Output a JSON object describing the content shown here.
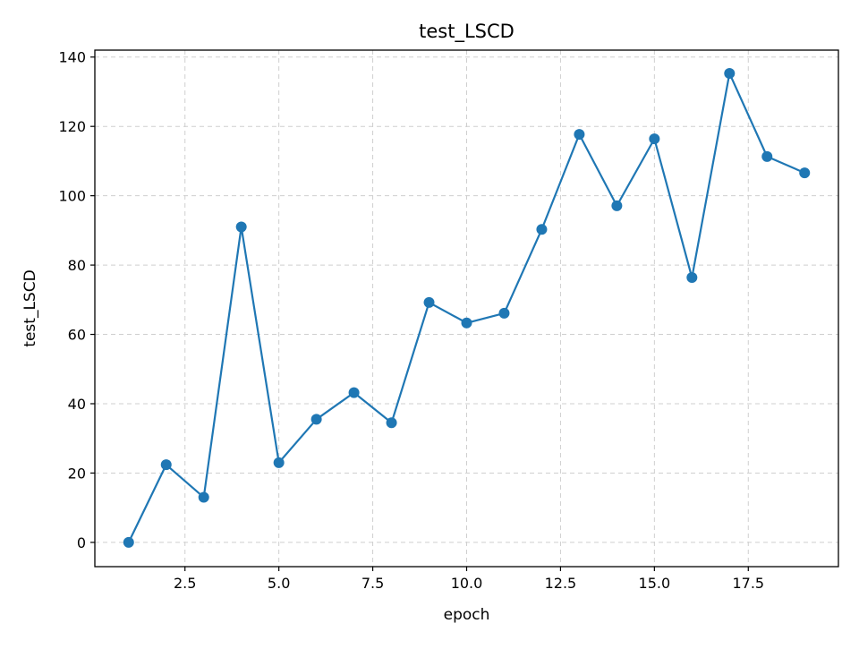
{
  "chart_data": {
    "type": "line",
    "title": "test_LSCD",
    "xlabel": "epoch",
    "ylabel": "test_LSCD",
    "xlim": [
      0.1,
      19.9
    ],
    "ylim": [
      -7,
      142
    ],
    "xticks": [
      2.5,
      5.0,
      7.5,
      10.0,
      12.5,
      15.0,
      17.5
    ],
    "xtick_labels": [
      "2.5",
      "5.0",
      "7.5",
      "10.0",
      "12.5",
      "15.0",
      "17.5"
    ],
    "yticks": [
      0,
      20,
      40,
      60,
      80,
      100,
      120,
      140
    ],
    "ytick_labels": [
      "0",
      "20",
      "40",
      "60",
      "80",
      "100",
      "120",
      "140"
    ],
    "grid": true,
    "series": [
      {
        "color": "#1f77b4",
        "marker": "circle",
        "x": [
          1,
          2,
          3,
          4,
          5,
          6,
          7,
          8,
          9,
          10,
          11,
          12,
          13,
          14,
          15,
          16,
          17,
          18,
          19
        ],
        "y": [
          0.0,
          22.4,
          13.0,
          91.0,
          23.0,
          35.5,
          43.2,
          34.5,
          69.2,
          63.3,
          66.1,
          90.3,
          117.7,
          97.1,
          116.4,
          76.4,
          135.3,
          111.3,
          106.6
        ]
      }
    ]
  }
}
